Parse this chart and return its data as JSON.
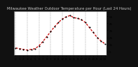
{
  "title": "Milwaukee Weather Outdoor Temperature per Hour (Last 24 Hours)",
  "hours": [
    0,
    1,
    2,
    3,
    4,
    5,
    6,
    7,
    8,
    9,
    10,
    11,
    12,
    13,
    14,
    15,
    16,
    17,
    18,
    19,
    20,
    21,
    22,
    23
  ],
  "temps": [
    10,
    9,
    8,
    7,
    8,
    9,
    13,
    19,
    26,
    33,
    40,
    46,
    51,
    54,
    56,
    53,
    52,
    50,
    46,
    39,
    32,
    25,
    20,
    16
  ],
  "line_color": "#cc0000",
  "marker_color": "#000000",
  "bg_color": "#111111",
  "plot_bg_color": "#ffffff",
  "grid_color": "#888888",
  "title_color": "#cccccc",
  "tick_color": "#000000",
  "ylim": [
    0,
    62
  ],
  "ytick_values": [
    5,
    15,
    25,
    35,
    45,
    55
  ],
  "title_fontsize": 3.8,
  "tick_fontsize": 3.0,
  "line_width": 0.9,
  "marker_size": 2.2
}
